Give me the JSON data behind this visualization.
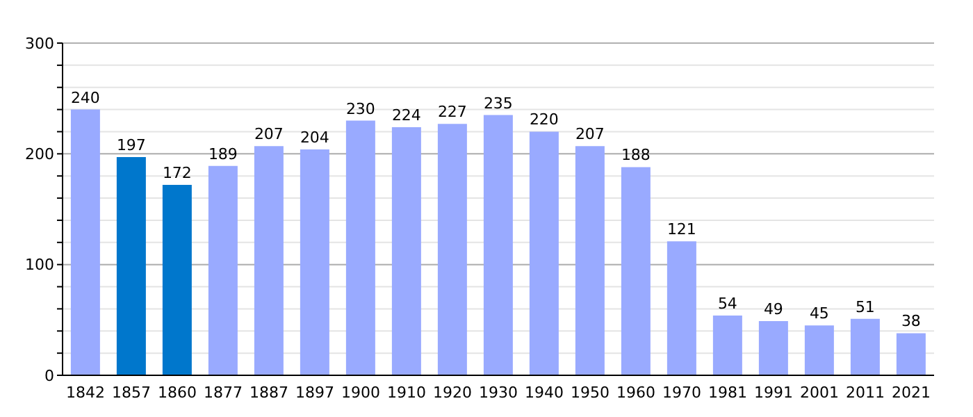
{
  "chart_data": {
    "type": "bar",
    "categories": [
      "1842",
      "1857",
      "1860",
      "1877",
      "1887",
      "1897",
      "1900",
      "1910",
      "1920",
      "1930",
      "1940",
      "1950",
      "1960",
      "1970",
      "1981",
      "1991",
      "2001",
      "2011",
      "2021"
    ],
    "values": [
      240,
      197,
      172,
      189,
      207,
      204,
      230,
      224,
      227,
      235,
      220,
      207,
      188,
      121,
      54,
      49,
      45,
      51,
      38
    ],
    "colors": [
      "#99aaff",
      "#0077cc",
      "#0077cc",
      "#99aaff",
      "#99aaff",
      "#99aaff",
      "#99aaff",
      "#99aaff",
      "#99aaff",
      "#99aaff",
      "#99aaff",
      "#99aaff",
      "#99aaff",
      "#99aaff",
      "#99aaff",
      "#99aaff",
      "#99aaff",
      "#99aaff",
      "#99aaff"
    ],
    "ylim": [
      0,
      300
    ],
    "yticks": [
      0,
      {
        "value": 20,
        "label": null
      },
      {
        "value": 40,
        "label": null
      },
      {
        "value": 60,
        "label": null
      },
      {
        "value": 80,
        "label": null
      },
      100,
      {
        "value": 120,
        "label": null
      },
      {
        "value": 140,
        "label": null
      },
      {
        "value": 160,
        "label": null
      },
      {
        "value": 180,
        "label": null
      },
      200,
      {
        "value": 220,
        "label": null
      },
      {
        "value": 240,
        "label": null
      },
      {
        "value": 260,
        "label": null
      },
      {
        "value": 280,
        "label": null
      },
      300
    ],
    "grid": true,
    "data_labels": true
  }
}
